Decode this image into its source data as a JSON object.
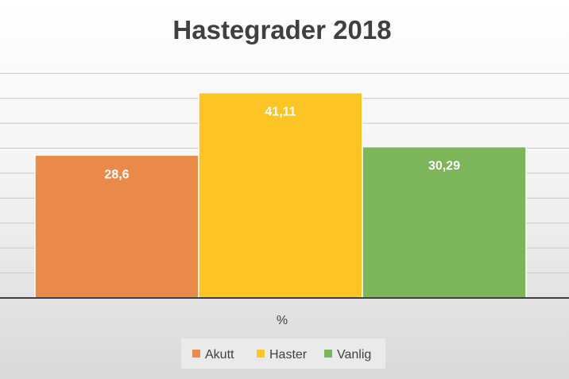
{
  "chart_data": {
    "type": "bar",
    "title": "Hastegrader 2018",
    "categories": [
      "%"
    ],
    "series": [
      {
        "name": "Akutt",
        "values": [
          28.6
        ],
        "label": "28,6",
        "color": "#e9894a"
      },
      {
        "name": "Haster",
        "values": [
          41.11
        ],
        "label": "41,11",
        "color": "#fcc425"
      },
      {
        "name": "Vanlig",
        "values": [
          30.29
        ],
        "label": "30,29",
        "color": "#7cb55a"
      }
    ],
    "ylim": [
      0,
      46
    ],
    "grid": true,
    "legend_position": "bottom"
  },
  "colors": {
    "gridline": "#c8c8c8",
    "axis": "#404040",
    "legend_box": "#eaeaea"
  }
}
